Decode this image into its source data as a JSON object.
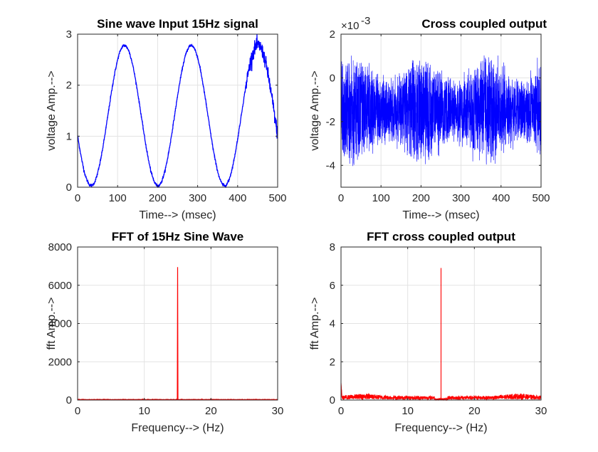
{
  "chart_data": [
    {
      "type": "line",
      "title": "Sine wave Input 15Hz signal",
      "xlabel": "Time--> (msec)",
      "ylabel": "voltage Amp.-->",
      "xlim": [
        0,
        500
      ],
      "ylim": [
        0,
        3
      ],
      "xticks": [
        "0",
        "100",
        "200",
        "300",
        "400",
        "500"
      ],
      "yticks": [
        "0",
        "1",
        "2",
        "3"
      ],
      "grid": true,
      "color": "#0000ff",
      "series": [
        {
          "description": "sine wave, 15 Hz, offset 1.4, amplitude 1.37, small noise increasing near the end",
          "x": [
            0,
            34,
            117,
            200,
            283,
            367,
            450,
            500
          ],
          "y": [
            0.95,
            0.03,
            2.78,
            0.03,
            2.78,
            0.03,
            2.78,
            0.9
          ]
        }
      ]
    },
    {
      "type": "line",
      "title": "Cross coupled output",
      "exponent_label": "×10",
      "exponent_power": "-3",
      "xlabel": "Time--> (msec)",
      "ylabel": "voltage Amp.-->",
      "xlim": [
        0,
        500
      ],
      "ylim": [
        -5,
        2
      ],
      "xticks": [
        "0",
        "100",
        "200",
        "300",
        "400",
        "500"
      ],
      "yticks": [
        "-4",
        "-2",
        "0",
        "2"
      ],
      "grid": true,
      "color": "#0000ff",
      "series": [
        {
          "description": "dense noise band centered near -1.5e-3, envelope modulated at 15 Hz",
          "band_center": -1.5,
          "band_halfwidth_min": 1.4,
          "band_halfwidth_max": 2.6,
          "extremes": [
            -4.8,
            1.4
          ]
        }
      ]
    },
    {
      "type": "line",
      "title": "FFT of 15Hz Sine Wave",
      "xlabel": "Frequency--> (Hz)",
      "ylabel": "fft Amp.-->",
      "xlim": [
        0,
        30
      ],
      "ylim": [
        0,
        8000
      ],
      "xticks": [
        "0",
        "10",
        "20",
        "30"
      ],
      "yticks": [
        "0",
        "2000",
        "4000",
        "6000",
        "8000"
      ],
      "grid": true,
      "color": "#ff0000",
      "series": [
        {
          "peak_x": 15,
          "peak_y": 6950,
          "baseline": 20
        }
      ]
    },
    {
      "type": "line",
      "title": "FFT cross coupled output",
      "xlabel": "Frequency--> (Hz)",
      "ylabel": "fft Amp.-->",
      "xlim": [
        0,
        30
      ],
      "ylim": [
        0,
        8
      ],
      "xticks": [
        "0",
        "10",
        "20",
        "30"
      ],
      "yticks": [
        "0",
        "2",
        "4",
        "6",
        "8"
      ],
      "grid": true,
      "color": "#ff0000",
      "series": [
        {
          "peak_x": 15,
          "peak_y": 6.9,
          "baseline": 0.15,
          "start_value": 0.9
        }
      ]
    }
  ]
}
